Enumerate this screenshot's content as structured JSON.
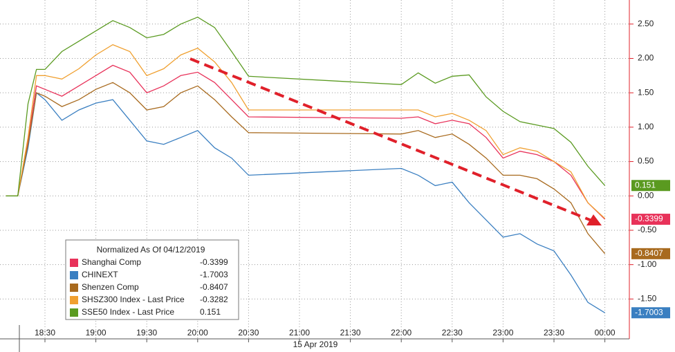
{
  "chart_data": {
    "type": "line",
    "x_label": "15 Apr 2019",
    "x": [
      "18:07",
      "18:14",
      "18:20",
      "18:25",
      "18:30",
      "18:40",
      "18:50",
      "19:00",
      "19:10",
      "19:20",
      "19:30",
      "19:40",
      "19:50",
      "20:00",
      "20:10",
      "20:20",
      "20:30",
      "22:00",
      "22:10",
      "22:20",
      "22:30",
      "22:40",
      "22:50",
      "23:00",
      "23:10",
      "23:20",
      "23:30",
      "23:40",
      "23:50",
      "00:00"
    ],
    "xticks": [
      "18:30",
      "19:00",
      "19:30",
      "20:00",
      "20:30",
      "21:00",
      "21:30",
      "22:00",
      "22:30",
      "23:00",
      "23:30",
      "00:00"
    ],
    "ylim": [
      -2.08,
      2.85
    ],
    "yticks": [
      {
        "value": 2.5,
        "label": "2.50"
      },
      {
        "value": 2,
        "label": "2.00"
      },
      {
        "value": 1.5,
        "label": "1.50"
      },
      {
        "value": 1,
        "label": "1.00"
      },
      {
        "value": 0.5,
        "label": "0.50"
      },
      {
        "value": 0,
        "label": "0.00"
      },
      {
        "value": -0.5,
        "label": "-0.50"
      },
      {
        "value": -1,
        "label": "-1.00"
      },
      {
        "value": -1.5,
        "label": "-1.50"
      }
    ],
    "grid": true,
    "legend": {
      "title": "Normalized As Of 04/12/2019",
      "position": "lower left"
    },
    "series": [
      {
        "name": "Shanghai Comp",
        "color": "#e8325a",
        "end_label": true,
        "values": [
          0,
          0,
          0.8,
          1.6,
          1.55,
          1.45,
          1.6,
          1.75,
          1.9,
          1.8,
          1.5,
          1.6,
          1.75,
          1.8,
          1.65,
          1.4,
          1.15,
          1.13,
          1.15,
          1.05,
          1.1,
          1.05,
          0.85,
          0.55,
          0.65,
          0.6,
          0.5,
          0.3,
          -0.1,
          -0.3399
        ]
      },
      {
        "name": "CHINEXT",
        "color": "#3a7fc1",
        "end_label": true,
        "values": [
          0,
          0,
          0.7,
          1.5,
          1.4,
          1.1,
          1.25,
          1.35,
          1.4,
          1.1,
          0.8,
          0.75,
          0.85,
          0.95,
          0.7,
          0.55,
          0.3,
          0.4,
          0.3,
          0.15,
          0.2,
          -0.1,
          -0.35,
          -0.6,
          -0.55,
          -0.7,
          -0.8,
          -1.15,
          -1.55,
          -1.7003
        ]
      },
      {
        "name": "Shenzen Comp",
        "color": "#a86a1e",
        "end_label": true,
        "values": [
          0,
          0,
          0.75,
          1.5,
          1.45,
          1.3,
          1.4,
          1.55,
          1.65,
          1.5,
          1.25,
          1.3,
          1.5,
          1.6,
          1.4,
          1.15,
          0.92,
          0.9,
          0.95,
          0.85,
          0.9,
          0.75,
          0.55,
          0.3,
          0.3,
          0.25,
          0.1,
          -0.1,
          -0.55,
          -0.8407
        ]
      },
      {
        "name": "SHSZ300 Index - Last Price",
        "color": "#f0a030",
        "end_label": false,
        "values": [
          0,
          0,
          0.85,
          1.75,
          1.75,
          1.7,
          1.85,
          2.05,
          2.2,
          2.1,
          1.75,
          1.85,
          2.05,
          2.15,
          1.95,
          1.65,
          1.25,
          1.25,
          1.25,
          1.15,
          1.2,
          1.1,
          0.95,
          0.6,
          0.7,
          0.65,
          0.5,
          0.35,
          -0.1,
          -0.3282
        ]
      },
      {
        "name": "SSE50 Index - Last Price",
        "color": "#5a9a20",
        "end_label": true,
        "values": [
          0,
          0,
          1.34,
          1.84,
          1.84,
          2.1,
          2.25,
          2.4,
          2.55,
          2.45,
          2.3,
          2.35,
          2.5,
          2.6,
          2.45,
          2.1,
          1.74,
          1.62,
          1.79,
          1.64,
          1.74,
          1.76,
          1.44,
          1.23,
          1.08,
          1.03,
          0.98,
          0.78,
          0.43,
          0.151
        ]
      }
    ]
  }
}
